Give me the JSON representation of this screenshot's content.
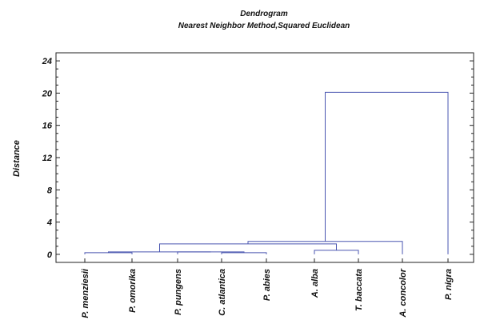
{
  "chart_data": {
    "type": "dendrogram",
    "title": "Dendrogram",
    "subtitle": "Nearest Neighbor Method,Squared Euclidean",
    "ylabel": "Distance",
    "ylim": [
      -1,
      25
    ],
    "yticks": [
      0,
      4,
      8,
      12,
      16,
      20,
      24
    ],
    "leaves": [
      "P. menziesii",
      "P. omorika",
      "P. pungens",
      "C. atlantica",
      "P. abies",
      "A. alba",
      "T. baccata",
      "A. concolor",
      "P. nigra"
    ],
    "merges": [
      {
        "left": "P. menziesii",
        "right": "P. omorika",
        "height": 0.2
      },
      {
        "left": "C. atlantica",
        "right": "P. abies",
        "height": 0.2
      },
      {
        "left": "A. alba",
        "right": "T. baccata",
        "height": 0.5
      },
      {
        "left": "P. pungens",
        "right": "{C. atlantica, P. abies}",
        "height": 0.3
      },
      {
        "left": "{P. menziesii, P. omorika}",
        "right": "{P. pungens, C. atlantica, P. abies}",
        "height": 0.3
      },
      {
        "left": "{P. menziesii ... P. abies}",
        "right": "{A. alba, T. baccata}",
        "height": 1.3
      },
      {
        "left": "{P. menziesii ... T. baccata}",
        "right": "A. concolor",
        "height": 1.6
      },
      {
        "left": "{P. menziesii ... A. concolor}",
        "right": "P. nigra",
        "height": 20.1
      }
    ],
    "color": "#4a56b0"
  }
}
